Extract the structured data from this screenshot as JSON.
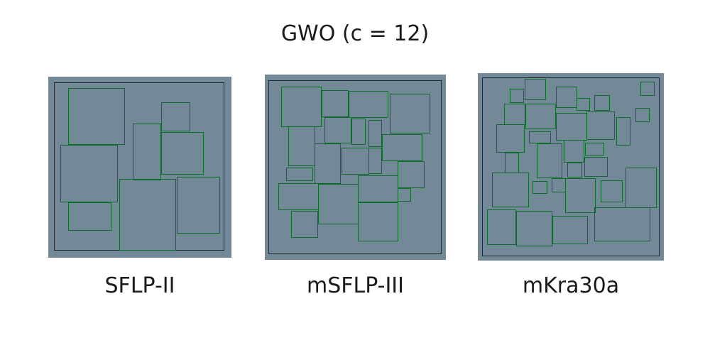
{
  "title": "GWO (c = 12)",
  "colors": {
    "floor": "#738997",
    "facility_outline": "#0f6a2e",
    "boundary": "#1f2a30"
  },
  "layouts": [
    {
      "id": "sflp-ii",
      "label": "SFLP-II"
    },
    {
      "id": "msflp-iii",
      "label": "mSFLP-III"
    },
    {
      "id": "mkra30a",
      "label": "mKra30a"
    }
  ]
}
